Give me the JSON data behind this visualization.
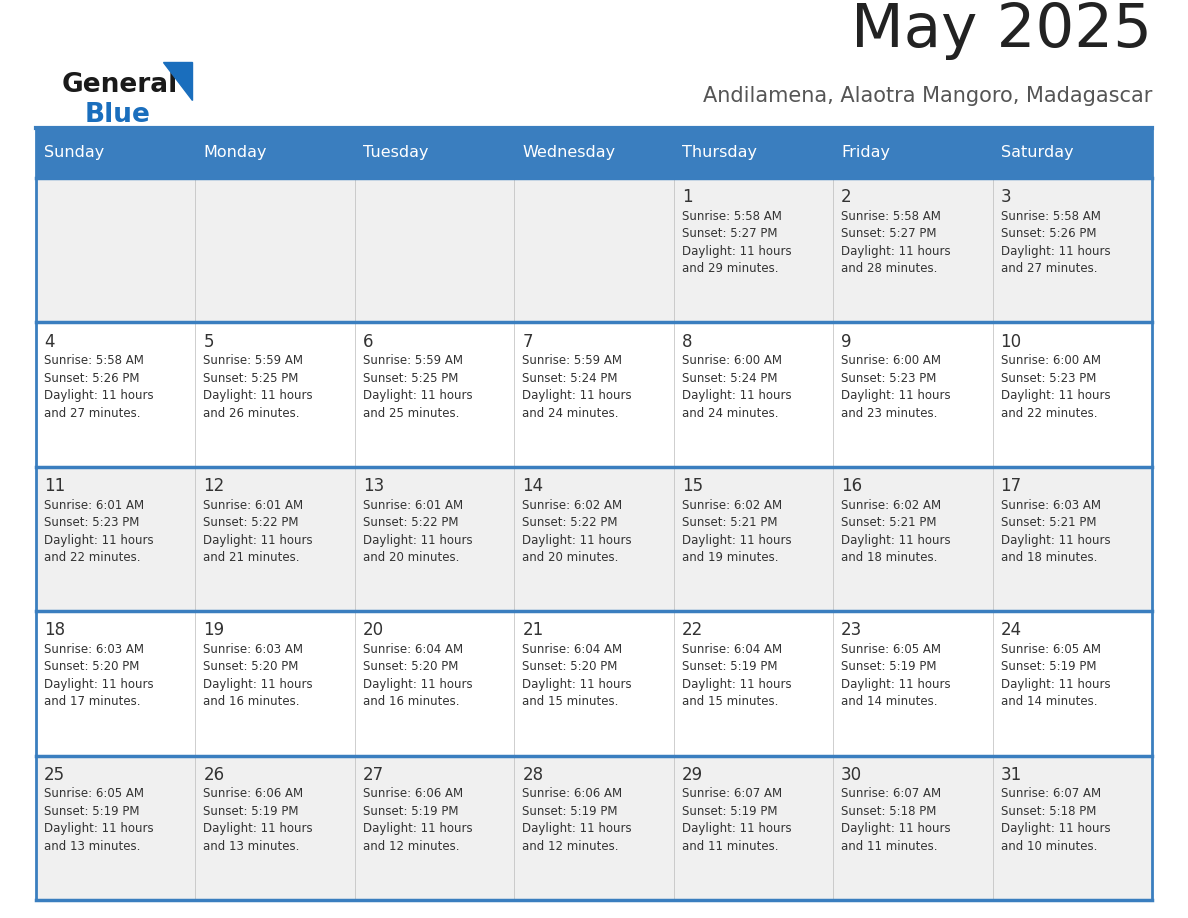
{
  "title": "May 2025",
  "subtitle": "Andilamena, Alaotra Mangoro, Madagascar",
  "days_of_week": [
    "Sunday",
    "Monday",
    "Tuesday",
    "Wednesday",
    "Thursday",
    "Friday",
    "Saturday"
  ],
  "header_bg": "#3a7ebf",
  "header_text": "#ffffff",
  "row_bg_even": "#f0f0f0",
  "row_bg_odd": "#ffffff",
  "cell_border": "#3a7ebf",
  "day_number_color": "#333333",
  "cell_text_color": "#333333",
  "title_color": "#222222",
  "subtitle_color": "#555555",
  "logo_general_color": "#1a1a1a",
  "logo_blue_color": "#1a6ebd",
  "calendar_data": [
    [
      "",
      "",
      "",
      "",
      "1\nSunrise: 5:58 AM\nSunset: 5:27 PM\nDaylight: 11 hours\nand 29 minutes.",
      "2\nSunrise: 5:58 AM\nSunset: 5:27 PM\nDaylight: 11 hours\nand 28 minutes.",
      "3\nSunrise: 5:58 AM\nSunset: 5:26 PM\nDaylight: 11 hours\nand 27 minutes."
    ],
    [
      "4\nSunrise: 5:58 AM\nSunset: 5:26 PM\nDaylight: 11 hours\nand 27 minutes.",
      "5\nSunrise: 5:59 AM\nSunset: 5:25 PM\nDaylight: 11 hours\nand 26 minutes.",
      "6\nSunrise: 5:59 AM\nSunset: 5:25 PM\nDaylight: 11 hours\nand 25 minutes.",
      "7\nSunrise: 5:59 AM\nSunset: 5:24 PM\nDaylight: 11 hours\nand 24 minutes.",
      "8\nSunrise: 6:00 AM\nSunset: 5:24 PM\nDaylight: 11 hours\nand 24 minutes.",
      "9\nSunrise: 6:00 AM\nSunset: 5:23 PM\nDaylight: 11 hours\nand 23 minutes.",
      "10\nSunrise: 6:00 AM\nSunset: 5:23 PM\nDaylight: 11 hours\nand 22 minutes."
    ],
    [
      "11\nSunrise: 6:01 AM\nSunset: 5:23 PM\nDaylight: 11 hours\nand 22 minutes.",
      "12\nSunrise: 6:01 AM\nSunset: 5:22 PM\nDaylight: 11 hours\nand 21 minutes.",
      "13\nSunrise: 6:01 AM\nSunset: 5:22 PM\nDaylight: 11 hours\nand 20 minutes.",
      "14\nSunrise: 6:02 AM\nSunset: 5:22 PM\nDaylight: 11 hours\nand 20 minutes.",
      "15\nSunrise: 6:02 AM\nSunset: 5:21 PM\nDaylight: 11 hours\nand 19 minutes.",
      "16\nSunrise: 6:02 AM\nSunset: 5:21 PM\nDaylight: 11 hours\nand 18 minutes.",
      "17\nSunrise: 6:03 AM\nSunset: 5:21 PM\nDaylight: 11 hours\nand 18 minutes."
    ],
    [
      "18\nSunrise: 6:03 AM\nSunset: 5:20 PM\nDaylight: 11 hours\nand 17 minutes.",
      "19\nSunrise: 6:03 AM\nSunset: 5:20 PM\nDaylight: 11 hours\nand 16 minutes.",
      "20\nSunrise: 6:04 AM\nSunset: 5:20 PM\nDaylight: 11 hours\nand 16 minutes.",
      "21\nSunrise: 6:04 AM\nSunset: 5:20 PM\nDaylight: 11 hours\nand 15 minutes.",
      "22\nSunrise: 6:04 AM\nSunset: 5:19 PM\nDaylight: 11 hours\nand 15 minutes.",
      "23\nSunrise: 6:05 AM\nSunset: 5:19 PM\nDaylight: 11 hours\nand 14 minutes.",
      "24\nSunrise: 6:05 AM\nSunset: 5:19 PM\nDaylight: 11 hours\nand 14 minutes."
    ],
    [
      "25\nSunrise: 6:05 AM\nSunset: 5:19 PM\nDaylight: 11 hours\nand 13 minutes.",
      "26\nSunrise: 6:06 AM\nSunset: 5:19 PM\nDaylight: 11 hours\nand 13 minutes.",
      "27\nSunrise: 6:06 AM\nSunset: 5:19 PM\nDaylight: 11 hours\nand 12 minutes.",
      "28\nSunrise: 6:06 AM\nSunset: 5:19 PM\nDaylight: 11 hours\nand 12 minutes.",
      "29\nSunrise: 6:07 AM\nSunset: 5:19 PM\nDaylight: 11 hours\nand 11 minutes.",
      "30\nSunrise: 6:07 AM\nSunset: 5:18 PM\nDaylight: 11 hours\nand 11 minutes.",
      "31\nSunrise: 6:07 AM\nSunset: 5:18 PM\nDaylight: 11 hours\nand 10 minutes."
    ]
  ]
}
